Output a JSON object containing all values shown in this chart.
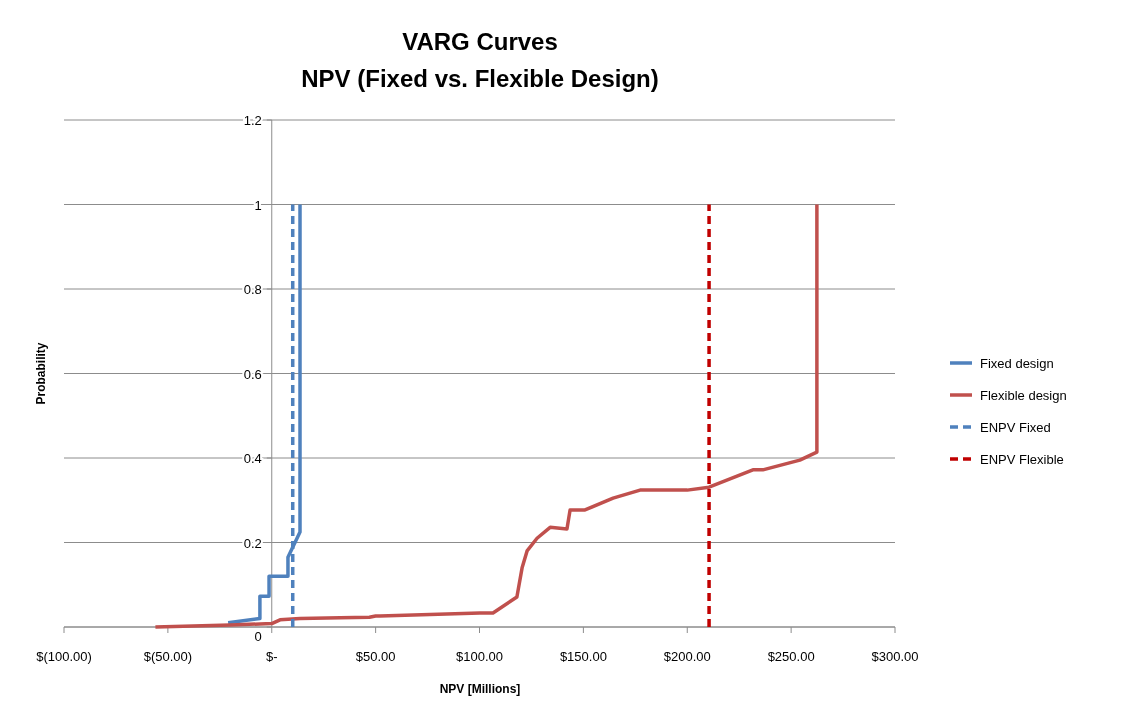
{
  "chart_data": {
    "type": "line",
    "title": "VARG Curves",
    "subtitle": "NPV (Fixed vs. Flexible Design)",
    "xlabel": "NPV [Millions]",
    "ylabel": "Probability",
    "xlim": [
      -100,
      300
    ],
    "xticks": [
      {
        "value": -100,
        "label": "$(100.00)"
      },
      {
        "value": -50,
        "label": "$(50.00)"
      },
      {
        "value": 0,
        "label": "$-"
      },
      {
        "value": 50,
        "label": "$50.00"
      },
      {
        "value": 100,
        "label": "$100.00"
      },
      {
        "value": 150,
        "label": "$150.00"
      },
      {
        "value": 200,
        "label": "$200.00"
      },
      {
        "value": 250,
        "label": "$250.00"
      },
      {
        "value": 300,
        "label": "$300.00"
      }
    ],
    "ylim": [
      0,
      1.2
    ],
    "yticks": [
      0,
      0.2,
      0.4,
      0.6,
      0.8,
      1,
      1.2
    ],
    "grid": "y",
    "legend": "right",
    "marker": "none",
    "series": [
      {
        "name": "Fixed design",
        "color": "#4f81bd",
        "line_style": "solid",
        "x": [
          -21,
          -5.7,
          -5.7,
          -1.3,
          -1.3,
          7.8,
          7.8,
          13.6,
          13.6
        ],
        "values": [
          0.01,
          0.02,
          0.073,
          0.073,
          0.12,
          0.12,
          0.165,
          0.225,
          1
        ]
      },
      {
        "name": "Flexible design",
        "color": "#c0504d",
        "line_style": "solid",
        "x": [
          -56,
          -20,
          0,
          4,
          13.6,
          33,
          47,
          50,
          52.1,
          100.2,
          106.5,
          118,
          120.5,
          122.9,
          127.7,
          134,
          142.1,
          143.6,
          150.8,
          164.3,
          177.3,
          200,
          210.5,
          231.6,
          236.4,
          254.2,
          262.4,
          262.4,
          262.4
        ],
        "values": [
          0,
          0.005,
          0.008,
          0.017,
          0.02,
          0.022,
          0.023,
          0.026,
          0.026,
          0.033,
          0.033,
          0.071,
          0.14,
          0.18,
          0.21,
          0.236,
          0.232,
          0.277,
          0.277,
          0.305,
          0.324,
          0.324,
          0.331,
          0.372,
          0.372,
          0.395,
          0.414,
          0.435,
          1
        ]
      },
      {
        "name": "ENPV Fixed",
        "color": "#4f81bd",
        "line_style": "dashed",
        "x": [
          10.1,
          10.1
        ],
        "values": [
          0,
          1
        ]
      },
      {
        "name": "ENPV Flexible",
        "color": "#c00000",
        "line_style": "dashed",
        "x": [
          210.5,
          210.5
        ],
        "values": [
          0,
          1
        ]
      }
    ]
  }
}
